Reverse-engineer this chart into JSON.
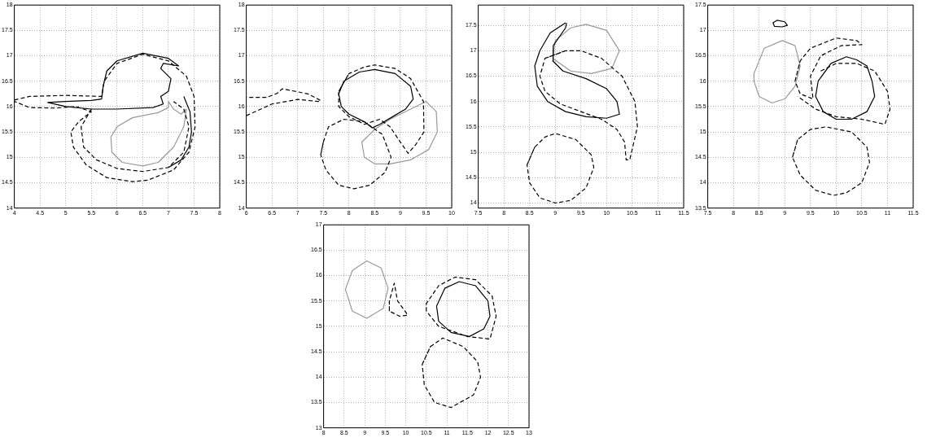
{
  "chart_data": [
    {
      "type": "line",
      "xlim": [
        4,
        8
      ],
      "ylim": [
        14,
        18
      ],
      "xticks": [
        4,
        4.5,
        5,
        5.5,
        6,
        6.5,
        7,
        7.5,
        8
      ],
      "yticks": [
        14,
        14.5,
        15,
        15.5,
        16,
        16.5,
        17,
        17.5,
        18
      ],
      "grid": true,
      "marker": "none",
      "series": [
        {
          "color": "#000000",
          "line_style": "solid",
          "x": [
            4.65,
            5.0,
            5.5,
            5.7,
            5.73,
            5.8,
            6.0,
            6.5,
            7.0,
            7.2,
            6.9,
            6.85,
            7.05,
            7.0,
            6.85,
            6.9,
            6.7,
            6.0,
            5.5,
            5.0,
            4.65,
            5.0
          ],
          "values": [
            16.08,
            16.1,
            16.12,
            16.15,
            16.4,
            16.7,
            16.9,
            17.05,
            16.95,
            16.8,
            16.85,
            16.75,
            16.55,
            16.3,
            16.2,
            16.05,
            15.98,
            15.95,
            15.95,
            16.0,
            16.08,
            16.1
          ]
        },
        {
          "color": "#000000",
          "line_style": "solid",
          "x": [
            7.3,
            7.42,
            7.45,
            7.4,
            7.25,
            7.0
          ],
          "values": [
            16.2,
            15.9,
            15.5,
            15.2,
            14.95,
            14.8
          ]
        },
        {
          "color": "#000000",
          "line_style": "dashed",
          "x": [
            4.0,
            4.3,
            5.0,
            5.7,
            5.75,
            6.0,
            6.5,
            7.0,
            7.35,
            7.5,
            7.52,
            7.4,
            7.1,
            6.6,
            6.3,
            5.8,
            5.4,
            5.15,
            5.1,
            5.25,
            5.5,
            5.2,
            4.8,
            4.3,
            4.0
          ],
          "values": [
            16.13,
            16.2,
            16.22,
            16.2,
            16.5,
            16.85,
            17.03,
            16.9,
            16.6,
            16.2,
            15.6,
            15.1,
            14.75,
            14.55,
            14.52,
            14.6,
            14.85,
            15.2,
            15.5,
            15.7,
            15.9,
            16.0,
            15.97,
            15.98,
            16.1
          ]
        },
        {
          "color": "#000000",
          "line_style": "dashed",
          "x": [
            5.5,
            5.3,
            5.35,
            5.6,
            6.0,
            6.5,
            7.0,
            7.3,
            7.4,
            7.3,
            7.1
          ],
          "values": [
            15.95,
            15.6,
            15.2,
            14.95,
            14.78,
            14.72,
            14.8,
            15.1,
            15.6,
            15.95,
            16.1
          ]
        },
        {
          "color": "#999999",
          "line_style": "solid",
          "x": [
            5.88,
            6.0,
            6.3,
            6.8,
            7.0,
            7.0,
            7.1,
            7.25,
            7.35,
            7.3,
            7.1,
            6.8,
            6.5,
            6.1,
            5.9,
            5.88,
            6.0
          ],
          "values": [
            15.4,
            15.6,
            15.78,
            15.88,
            15.98,
            16.1,
            15.95,
            15.85,
            15.95,
            15.6,
            15.2,
            14.9,
            14.83,
            14.9,
            15.1,
            15.4,
            15.6
          ]
        }
      ]
    },
    {
      "type": "line",
      "xlim": [
        6,
        10
      ],
      "ylim": [
        14,
        18
      ],
      "xticks": [
        6,
        6.5,
        7,
        7.5,
        8,
        8.5,
        9,
        9.5,
        10
      ],
      "yticks": [
        14,
        14.5,
        15,
        15.5,
        16,
        16.5,
        17,
        17.5,
        18
      ],
      "grid": true,
      "marker": "none",
      "series": [
        {
          "color": "#000000",
          "line_style": "solid",
          "x": [
            7.8,
            7.9,
            8.2,
            8.5,
            8.9,
            9.2,
            9.25,
            9.1,
            8.85,
            8.6,
            8.45,
            8.3,
            8.0,
            7.85,
            7.8,
            7.9
          ],
          "values": [
            16.25,
            16.5,
            16.68,
            16.73,
            16.65,
            16.4,
            16.15,
            15.95,
            15.8,
            15.65,
            15.58,
            15.7,
            15.85,
            16.0,
            16.25,
            16.5
          ]
        },
        {
          "color": "#000000",
          "line_style": "dashed",
          "x": [
            7.8,
            8.0,
            8.3,
            8.5,
            8.9,
            9.2,
            9.45,
            9.46,
            9.3,
            9.15,
            9.0,
            8.8,
            8.6,
            8.3,
            8.0,
            7.8,
            7.8,
            8.0
          ],
          "values": [
            16.3,
            16.65,
            16.78,
            16.82,
            16.75,
            16.55,
            16.1,
            15.5,
            15.25,
            15.08,
            15.3,
            15.6,
            15.75,
            15.65,
            15.8,
            16.0,
            16.3,
            16.65
          ]
        },
        {
          "color": "#000000",
          "line_style": "dashed",
          "x": [
            6.0,
            6.5,
            7.0,
            7.4,
            7.45,
            7.2,
            6.7,
            6.6,
            6.4,
            6.0
          ],
          "values": [
            15.82,
            16.05,
            16.14,
            16.1,
            16.12,
            16.25,
            16.35,
            16.26,
            16.18,
            16.18
          ]
        },
        {
          "color": "#000000",
          "line_style": "dashed",
          "x": [
            7.45,
            7.5,
            7.6,
            7.9,
            8.3,
            8.65,
            8.82,
            8.7,
            8.4,
            8.1,
            7.8,
            7.55,
            7.45,
            7.5
          ],
          "values": [
            15.05,
            15.3,
            15.6,
            15.75,
            15.7,
            15.45,
            15.0,
            14.7,
            14.45,
            14.38,
            14.45,
            14.75,
            15.05,
            15.3
          ]
        },
        {
          "color": "#999999",
          "line_style": "solid",
          "x": [
            8.25,
            8.5,
            8.8,
            9.2,
            9.5,
            9.7,
            9.72,
            9.55,
            9.2,
            8.8,
            8.5,
            8.3,
            8.25,
            8.5
          ],
          "values": [
            15.3,
            15.55,
            15.75,
            15.95,
            16.1,
            15.9,
            15.5,
            15.15,
            14.95,
            14.87,
            14.87,
            15.0,
            15.3,
            15.55
          ]
        }
      ]
    },
    {
      "type": "line",
      "xlim": [
        7.5,
        11.5
      ],
      "ylim": [
        13.9,
        17.9
      ],
      "xticks": [
        7.5,
        8,
        8.5,
        9,
        9.5,
        10,
        10.5,
        11,
        11.5
      ],
      "yticks": [
        14,
        14.5,
        15,
        15.5,
        16,
        16.5,
        17,
        17.5
      ],
      "grid": true,
      "marker": "none",
      "series": [
        {
          "color": "#000000",
          "line_style": "solid",
          "x": [
            9.2,
            8.9,
            8.7,
            8.6,
            8.65,
            8.85,
            9.2,
            9.6,
            10.0,
            10.25,
            10.2,
            10.0,
            9.6,
            9.15,
            8.95,
            8.96,
            9.2,
            9.22
          ],
          "values": [
            17.55,
            17.35,
            17.0,
            16.7,
            16.3,
            16.0,
            15.8,
            15.7,
            15.67,
            15.75,
            16.0,
            16.25,
            16.45,
            16.6,
            16.8,
            17.1,
            17.45,
            17.55
          ]
        },
        {
          "color": "#000000",
          "line_style": "dashed",
          "x": [
            9.2,
            8.8,
            8.7,
            8.8,
            9.1,
            9.5,
            9.9,
            10.2,
            10.35,
            10.38,
            10.45,
            10.6,
            10.55,
            10.3,
            9.9,
            9.5,
            9.2,
            8.8
          ],
          "values": [
            17.0,
            16.85,
            16.5,
            16.2,
            15.95,
            15.8,
            15.65,
            15.45,
            15.2,
            14.85,
            14.85,
            15.5,
            16.0,
            16.5,
            16.85,
            17.0,
            17.0,
            16.85
          ]
        },
        {
          "color": "#000000",
          "line_style": "dashed",
          "x": [
            8.45,
            8.6,
            8.8,
            9.0,
            9.4,
            9.7,
            9.75,
            9.6,
            9.3,
            9.0,
            8.7,
            8.5,
            8.45,
            8.6
          ],
          "values": [
            14.75,
            15.1,
            15.3,
            15.37,
            15.25,
            14.95,
            14.7,
            14.3,
            14.05,
            14.0,
            14.1,
            14.4,
            14.75,
            15.1
          ]
        },
        {
          "color": "#999999",
          "line_style": "solid",
          "x": [
            8.95,
            9.0,
            9.3,
            9.6,
            10.0,
            10.25,
            10.1,
            9.7,
            9.3,
            8.95,
            9.0
          ],
          "values": [
            16.85,
            17.2,
            17.45,
            17.52,
            17.4,
            17.0,
            16.65,
            16.55,
            16.6,
            16.85,
            17.2
          ]
        }
      ]
    },
    {
      "type": "line",
      "xlim": [
        7.5,
        11.5
      ],
      "ylim": [
        13.5,
        17.5
      ],
      "xticks": [
        7.5,
        8,
        8.5,
        9,
        9.5,
        10,
        10.5,
        11,
        11.5
      ],
      "yticks": [
        13.5,
        14,
        14.5,
        15,
        15.5,
        16,
        16.5,
        17,
        17.5
      ],
      "grid": true,
      "marker": "none",
      "series": [
        {
          "color": "#000000",
          "line_style": "solid",
          "x": [
            8.77,
            8.85,
            9.0,
            9.05,
            8.95,
            8.8,
            8.77,
            8.85
          ],
          "values": [
            17.15,
            17.2,
            17.17,
            17.1,
            17.07,
            17.08,
            17.15,
            17.2
          ]
        },
        {
          "color": "#000000",
          "line_style": "solid",
          "x": [
            9.6,
            9.65,
            9.9,
            10.2,
            10.4,
            10.6,
            10.7,
            10.75,
            10.6,
            10.3,
            10.0,
            9.75,
            9.6,
            9.65
          ],
          "values": [
            15.7,
            16.0,
            16.35,
            16.48,
            16.42,
            16.3,
            16.0,
            15.7,
            15.4,
            15.25,
            15.25,
            15.4,
            15.7,
            16.0
          ]
        },
        {
          "color": "#000000",
          "line_style": "dashed",
          "x": [
            9.2,
            9.3,
            9.5,
            10.0,
            10.4,
            10.5,
            10.1,
            9.7,
            9.5,
            9.55,
            9.3,
            9.2,
            9.3
          ],
          "values": [
            16.0,
            16.4,
            16.65,
            16.85,
            16.8,
            16.72,
            16.7,
            16.5,
            16.1,
            15.65,
            15.75,
            16.0,
            16.4
          ]
        },
        {
          "color": "#000000",
          "line_style": "dashed",
          "x": [
            9.7,
            10.0,
            10.4,
            10.75,
            11.0,
            11.05,
            10.95,
            10.5,
            10.0,
            9.6,
            9.25
          ],
          "values": [
            16.2,
            16.35,
            16.35,
            16.2,
            15.8,
            15.45,
            15.15,
            15.25,
            15.3,
            15.45,
            15.7
          ]
        },
        {
          "color": "#000000",
          "line_style": "dashed",
          "x": [
            9.15,
            9.25,
            9.5,
            9.8,
            10.3,
            10.6,
            10.65,
            10.5,
            10.2,
            9.95,
            9.6,
            9.3,
            9.15,
            9.25
          ],
          "values": [
            14.5,
            14.85,
            15.05,
            15.1,
            15.0,
            14.7,
            14.4,
            14.0,
            13.8,
            13.75,
            13.85,
            14.15,
            14.5,
            14.85
          ]
        },
        {
          "color": "#999999",
          "line_style": "solid",
          "x": [
            8.4,
            8.6,
            8.95,
            9.2,
            9.3,
            9.2,
            9.0,
            8.75,
            8.5,
            8.4,
            8.4,
            8.6
          ],
          "values": [
            16.15,
            16.65,
            16.8,
            16.7,
            16.3,
            15.9,
            15.65,
            15.57,
            15.7,
            16.0,
            16.15,
            16.65
          ]
        }
      ]
    },
    {
      "type": "line",
      "xlim": [
        8,
        13
      ],
      "ylim": [
        13,
        17
      ],
      "xticks": [
        8,
        8.5,
        9,
        9.5,
        10,
        10.5,
        11,
        11.5,
        12,
        12.5,
        13
      ],
      "yticks": [
        13,
        13.5,
        14,
        14.5,
        15,
        15.5,
        16,
        16.5,
        17
      ],
      "grid": true,
      "marker": "none",
      "series": [
        {
          "color": "#999999",
          "line_style": "solid",
          "x": [
            8.53,
            8.7,
            9.05,
            9.4,
            9.57,
            9.45,
            9.05,
            8.7,
            8.53,
            8.7
          ],
          "values": [
            15.73,
            16.1,
            16.29,
            16.15,
            15.75,
            15.35,
            15.16,
            15.3,
            15.73,
            16.1
          ]
        },
        {
          "color": "#000000",
          "line_style": "dashed",
          "x": [
            9.6,
            9.6,
            9.72,
            9.8,
            10.05,
            9.85,
            9.6,
            9.6
          ],
          "values": [
            15.3,
            15.5,
            15.85,
            15.5,
            15.22,
            15.2,
            15.3,
            15.5
          ]
        },
        {
          "color": "#000000",
          "line_style": "solid",
          "x": [
            10.75,
            10.95,
            11.3,
            11.7,
            12.0,
            12.05,
            11.9,
            11.55,
            11.1,
            10.8,
            10.75,
            10.95
          ],
          "values": [
            15.4,
            15.75,
            15.88,
            15.8,
            15.5,
            15.2,
            14.95,
            14.8,
            14.88,
            15.1,
            15.4,
            15.75
          ]
        },
        {
          "color": "#000000",
          "line_style": "dashed",
          "x": [
            10.5,
            10.5,
            10.8,
            11.2,
            11.7,
            12.1,
            12.2,
            12.05,
            11.5,
            10.8,
            10.5,
            10.5
          ],
          "values": [
            15.3,
            15.45,
            15.8,
            15.97,
            15.92,
            15.6,
            15.2,
            14.75,
            14.8,
            15.0,
            15.3,
            15.45
          ]
        },
        {
          "color": "#000000",
          "line_style": "dashed",
          "x": [
            10.4,
            10.6,
            10.9,
            11.4,
            11.75,
            11.82,
            11.65,
            11.1,
            10.7,
            10.45,
            10.4,
            10.6
          ],
          "values": [
            14.25,
            14.6,
            14.77,
            14.6,
            14.3,
            14.0,
            13.65,
            13.4,
            13.5,
            13.85,
            14.25,
            14.6
          ]
        }
      ]
    }
  ]
}
